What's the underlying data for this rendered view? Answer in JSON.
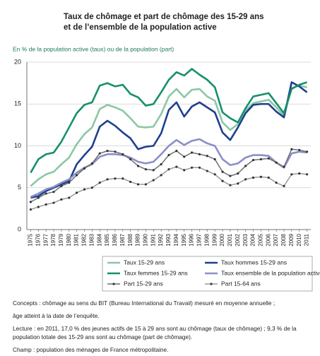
{
  "chart_data": {
    "type": "line",
    "title": [
      "Taux de chômage et part de chômage des 15-29 ans",
      "et de l’ensemble de la population active"
    ],
    "ylabel": "En % de la population active (taux) ou de la population (part)",
    "categories": [
      "1975",
      "1976",
      "1977",
      "1978",
      "1979",
      "1980",
      "1981",
      "1982",
      "1983",
      "1984",
      "1985",
      "1986",
      "1987",
      "1988",
      "1989",
      "1990",
      "1991",
      "1992",
      "1993",
      "1994",
      "1995",
      "1996",
      "1997",
      "1998",
      "1999",
      "2000",
      "2001",
      "2002",
      "2003",
      "2004",
      "2005",
      "2006",
      "2007",
      "2008",
      "2009",
      "2010",
      "2011"
    ],
    "ylim": [
      0,
      20
    ],
    "yticks": [
      0,
      5,
      10,
      15,
      20
    ],
    "grid": true,
    "series": [
      {
        "name": "Taux 15-29 ans",
        "color": "#8cc7a4",
        "marker": false,
        "values": [
          5.2,
          6.0,
          6.6,
          6.9,
          7.8,
          8.6,
          10.2,
          11.4,
          12.2,
          14.4,
          14.9,
          14.6,
          14.2,
          13.3,
          12.3,
          12.2,
          12.3,
          13.8,
          15.9,
          16.8,
          15.8,
          16.7,
          16.8,
          15.9,
          15.4,
          12.8,
          11.9,
          12.6,
          14.2,
          15.1,
          15.3,
          15.5,
          14.6,
          13.6,
          16.9,
          17.2,
          17.0
        ]
      },
      {
        "name": "Taux hommes 15-29 ans",
        "color": "#1f3f8f",
        "marker": false,
        "values": [
          3.8,
          4.0,
          4.6,
          5.0,
          5.4,
          5.8,
          7.8,
          8.9,
          9.9,
          12.3,
          13.0,
          12.4,
          11.6,
          10.9,
          9.6,
          9.9,
          10.0,
          11.5,
          14.3,
          15.2,
          13.5,
          14.7,
          15.2,
          14.6,
          14.0,
          11.6,
          10.7,
          12.2,
          13.9,
          14.9,
          15.0,
          15.0,
          14.1,
          13.4,
          17.6,
          17.1,
          16.4
        ]
      },
      {
        "name": "Taux femmes 15-29 ans",
        "color": "#14906a",
        "marker": false,
        "values": [
          6.8,
          8.4,
          9.0,
          9.2,
          10.5,
          12.2,
          13.9,
          14.9,
          15.2,
          17.2,
          17.5,
          17.1,
          17.3,
          16.2,
          15.8,
          14.8,
          15.0,
          16.4,
          17.9,
          18.8,
          18.4,
          19.2,
          18.5,
          17.9,
          17.0,
          14.0,
          13.3,
          12.8,
          14.5,
          15.9,
          16.1,
          16.3,
          15.1,
          13.9,
          16.8,
          17.3,
          17.6
        ]
      },
      {
        "name": "Taux ensemble de la population active",
        "color": "#8a8fc6",
        "marker": false,
        "values": [
          3.9,
          4.3,
          4.8,
          5.1,
          5.6,
          6.0,
          6.8,
          7.4,
          7.8,
          8.7,
          9.0,
          9.0,
          8.9,
          8.6,
          8.1,
          7.9,
          8.1,
          9.0,
          10.0,
          10.7,
          10.1,
          10.6,
          10.8,
          10.3,
          10.0,
          8.4,
          7.7,
          7.9,
          8.6,
          8.9,
          8.9,
          8.8,
          8.0,
          7.4,
          9.1,
          9.3,
          9.2
        ]
      },
      {
        "name": "Part 15-29 ans",
        "color": "#6e6e6e",
        "marker": true,
        "values": [
          3.3,
          3.8,
          4.3,
          4.5,
          5.2,
          5.6,
          6.5,
          7.3,
          7.9,
          9.1,
          9.4,
          9.3,
          9.0,
          8.4,
          7.6,
          7.2,
          7.1,
          7.8,
          8.9,
          9.4,
          8.7,
          9.2,
          9.0,
          8.8,
          8.4,
          6.9,
          6.4,
          6.7,
          7.6,
          8.3,
          8.4,
          8.5,
          8.0,
          7.5,
          9.6,
          9.5,
          9.3
        ]
      },
      {
        "name": "Part 15-64 ans",
        "color": "#9a9a9a",
        "marker": true,
        "values": [
          2.4,
          2.7,
          3.0,
          3.2,
          3.6,
          3.8,
          4.4,
          4.8,
          5.0,
          5.6,
          6.0,
          6.1,
          6.1,
          5.7,
          5.4,
          5.4,
          5.9,
          6.5,
          7.2,
          7.5,
          7.1,
          7.4,
          7.4,
          7.0,
          6.6,
          5.8,
          5.3,
          5.5,
          6.0,
          6.2,
          6.3,
          6.2,
          5.6,
          5.2,
          6.6,
          6.7,
          6.6
        ]
      }
    ],
    "notes": [
      "Concepts : chômage au sens du BIT (Bureau International du Travail) mesuré en moyenne annuelle ;",
      "âge atteint à la date de l’enquête.",
      "Lecture : en 2011, 17,0 % des jeunes actifs de 15 à 29 ans sont au chômage (taux de chômage) ; 9,3 % de la",
      "population totale des 15-29 ans sont au chômage (part de chômage).",
      "Champ : population des ménages de France métropolitaine."
    ]
  }
}
